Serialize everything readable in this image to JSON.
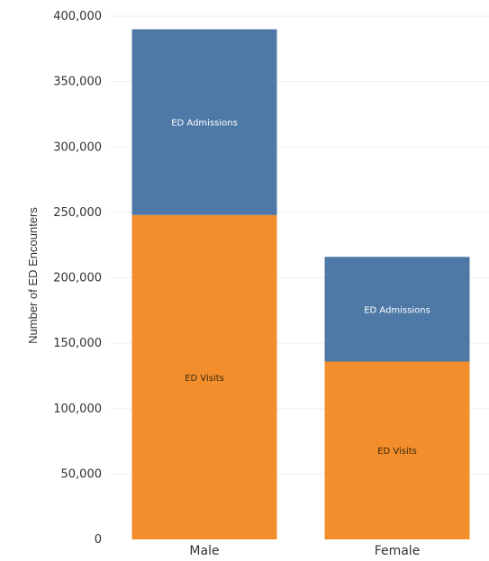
{
  "chart_data": {
    "type": "bar",
    "stacked": true,
    "categories": [
      "Male",
      "Female"
    ],
    "series": [
      {
        "name": "ED Visits",
        "values": [
          248000,
          136000
        ],
        "color": "#f28e2b",
        "label_color": "#3a2a10"
      },
      {
        "name": "ED Admissions",
        "values": [
          142000,
          80000
        ],
        "color": "#4e79a7",
        "label_color": "#ffffff"
      }
    ],
    "ylabel": "Number of ED Encounters",
    "xlabel": "",
    "ylim": [
      0,
      400000
    ],
    "yticks": [
      0,
      50000,
      100000,
      150000,
      200000,
      250000,
      300000,
      350000,
      400000
    ],
    "ytick_labels": [
      "0",
      "50,000",
      "100,000",
      "150,000",
      "200,000",
      "250,000",
      "300,000",
      "350,000",
      "400,000"
    ],
    "grid": true,
    "legend": "none"
  }
}
